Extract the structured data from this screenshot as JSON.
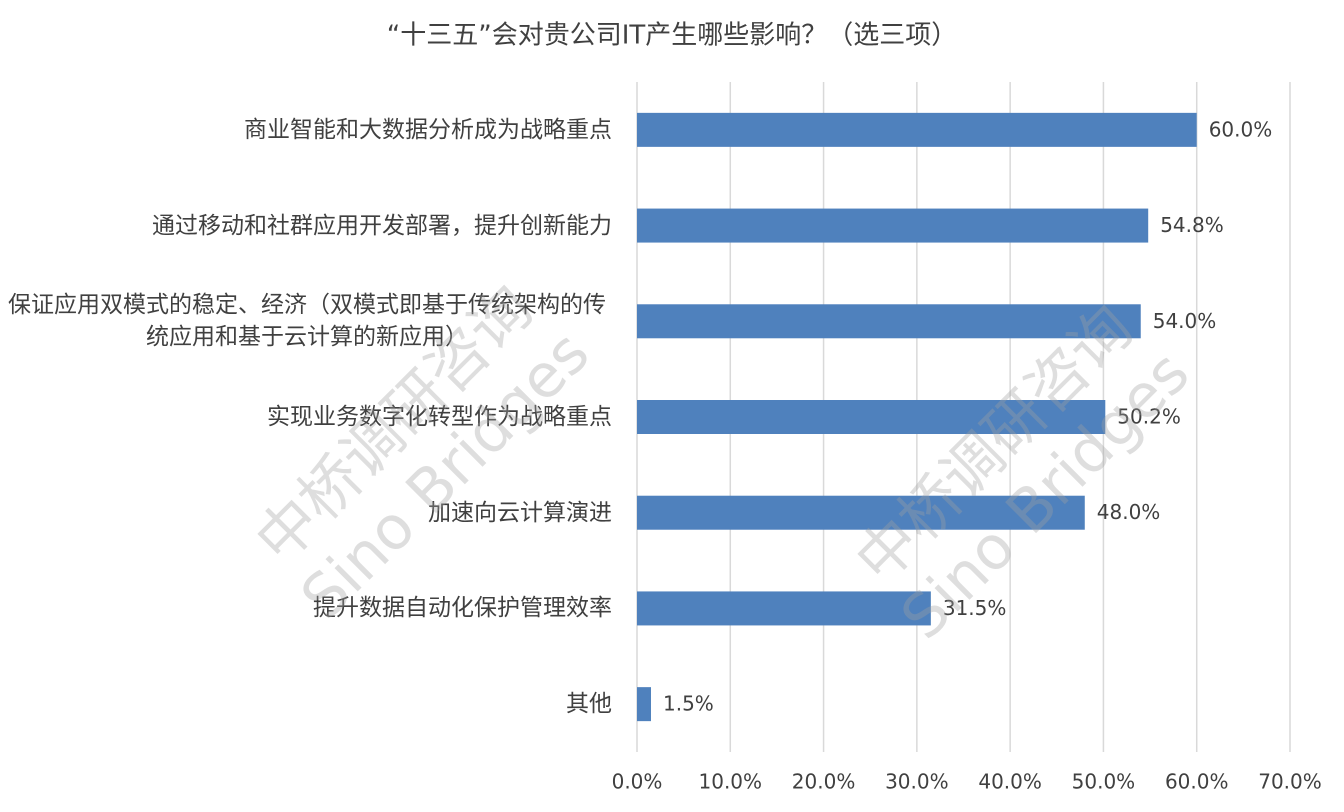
{
  "chart_data": {
    "type": "barh",
    "title": "“十三五”会对贵公司IT产生哪些影响？（选三项）",
    "categories": [
      "商业智能和大数据分析成为战略重点",
      "通过移动和社群应用开发部署，提升创新能力",
      "保证应用双模式的稳定、经济（双模式即基于传统架构的传统应用和基于云计算的新应用）",
      "实现业务数字化转型作为战略重点",
      "加速向云计算演进",
      "提升数据自动化保护管理效率",
      "其他"
    ],
    "values": [
      60,
      54.8,
      54,
      50.2,
      48,
      31.5,
      1.5
    ],
    "value_labels": [
      "60.0%",
      "54.8%",
      "54.0%",
      "50.2%",
      "48.0%",
      "31.5%",
      "1.5%"
    ],
    "color": "#4f81bd",
    "xlim": [
      0,
      70
    ],
    "xticks": [
      {
        "value": 0,
        "label": "0.0%"
      },
      {
        "value": 10,
        "label": "10.0%"
      },
      {
        "value": 20,
        "label": "20.0%"
      },
      {
        "value": 30,
        "label": "30.0%"
      },
      {
        "value": 40,
        "label": "40.0%"
      },
      {
        "value": 50,
        "label": "50.0%"
      },
      {
        "value": 60,
        "label": "60.0%"
      },
      {
        "value": 70,
        "label": "70.0%"
      }
    ],
    "grid": true,
    "watermark": [
      "中桥调研咨询",
      "Sino Bridges"
    ]
  }
}
